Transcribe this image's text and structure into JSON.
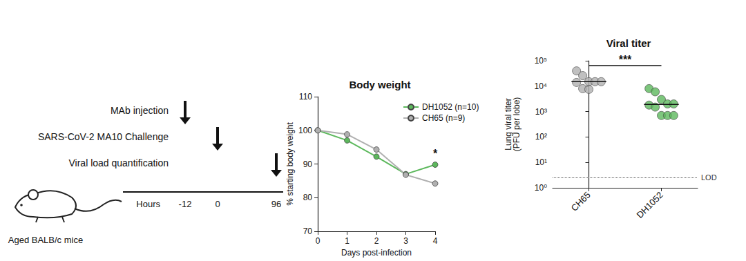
{
  "schematic": {
    "events": [
      {
        "label": "MAb injection",
        "hour": -12
      },
      {
        "label": "SARS-CoV-2 MA10 Challenge",
        "hour": 0
      },
      {
        "label": "Viral load quantification",
        "hour": 96
      }
    ],
    "axis_label": "Hours",
    "caption": "Aged BALB/c mice"
  },
  "chart_data": [
    {
      "type": "line",
      "title": "Body weight",
      "xlabel": "Days post-infection",
      "ylabel": "% starting body weight",
      "x": [
        0,
        1,
        2,
        3,
        4
      ],
      "series": [
        {
          "name": "DH1052 (n=10)",
          "color": "#5cb85c",
          "marker": "circle",
          "values": [
            100,
            97,
            92.2,
            87,
            89.8
          ]
        },
        {
          "name": "CH65 (n=9)",
          "color": "#b0b0b0",
          "marker": "circle",
          "values": [
            100,
            98.8,
            94.3,
            86.8,
            84.2
          ]
        }
      ],
      "xlim": [
        0,
        4
      ],
      "xticks": [
        0,
        1,
        2,
        3,
        4
      ],
      "ylim": [
        70,
        110
      ],
      "yticks": [
        70,
        80,
        90,
        100,
        110
      ],
      "grid": false,
      "legend": "upper right",
      "annotation": {
        "text": "*",
        "x": 4
      }
    },
    {
      "type": "scatter",
      "title": "Viral titer",
      "ylabel": "Lung viral titer (PFU per lobe)",
      "categories": [
        "CH65",
        "DH1052"
      ],
      "colors": [
        "#b0b0b0",
        "#5cb85c"
      ],
      "marker": "circle",
      "values": [
        [
          40000,
          26000,
          15000,
          15000,
          15000,
          14000,
          8000,
          7500
        ],
        [
          8000,
          6000,
          3000,
          2000,
          2000,
          1800,
          1500,
          700,
          700,
          700
        ]
      ],
      "medians": [
        15000,
        1900
      ],
      "log": "y",
      "ylim": [
        1,
        100000
      ],
      "yticks": [
        {
          "value": 1,
          "label": "10⁰"
        },
        {
          "value": 10,
          "label": "10¹"
        },
        {
          "value": 100,
          "label": "10²"
        },
        {
          "value": 1000,
          "label": "10³"
        },
        {
          "value": 10000,
          "label": "10⁴"
        },
        {
          "value": 100000,
          "label": "10⁵"
        }
      ],
      "grid": false,
      "lod": {
        "label": "LOD",
        "value": 2.5
      },
      "annotation": {
        "text": "***",
        "between": [
          "CH65",
          "DH1052"
        ]
      }
    }
  ]
}
